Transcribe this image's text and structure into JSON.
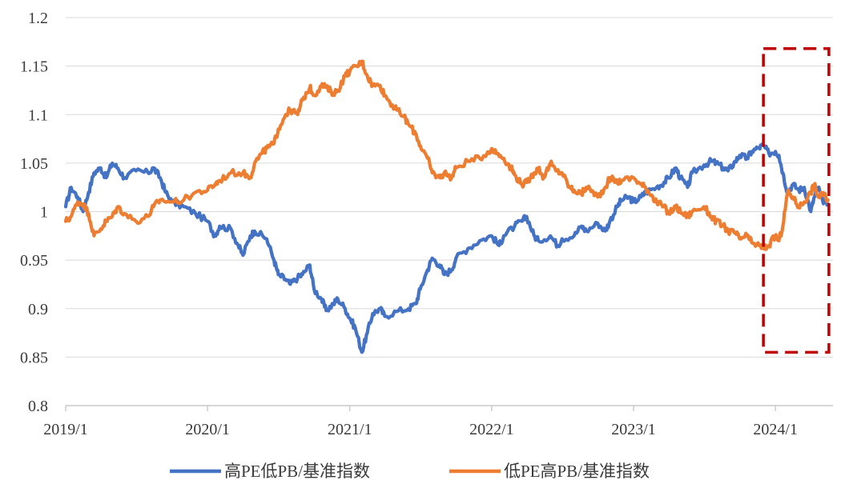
{
  "chart_data": {
    "type": "line",
    "title": "",
    "xlabel": "",
    "ylabel": "",
    "ylim": [
      0.8,
      1.2
    ],
    "yticks": [
      "0.8",
      "0.85",
      "0.9",
      "0.95",
      "1",
      "1.05",
      "1.1",
      "1.15",
      "1.2"
    ],
    "xtick_labels": [
      "2019/1",
      "2020/1",
      "2021/1",
      "2022/1",
      "2023/1",
      "2024/1"
    ],
    "grid": "horizontal",
    "legend_position": "bottom",
    "highlight_box": {
      "style": "dashed",
      "color": "#c00000",
      "x_range": [
        "2023/12",
        "2024/5"
      ],
      "y_range": [
        0.855,
        1.168
      ]
    },
    "series": [
      {
        "name": "高PE低PB/基准指数",
        "color": "#4472c4",
        "points": [
          [
            "2019-01",
            1.005
          ],
          [
            "2019-01-15",
            1.025
          ],
          [
            "2019-02",
            1.015
          ],
          [
            "2019-02-15",
            1.0
          ],
          [
            "2019-03",
            1.02
          ],
          [
            "2019-03-15",
            1.04
          ],
          [
            "2019-04",
            1.045
          ],
          [
            "2019-04-15",
            1.035
          ],
          [
            "2019-05",
            1.05
          ],
          [
            "2019-05-15",
            1.045
          ],
          [
            "2019-06",
            1.035
          ],
          [
            "2019-07",
            1.042
          ],
          [
            "2019-08",
            1.04
          ],
          [
            "2019-08-15",
            1.045
          ],
          [
            "2019-09",
            1.035
          ],
          [
            "2019-09-15",
            1.02
          ],
          [
            "2019-10",
            1.01
          ],
          [
            "2019-11",
            1.005
          ],
          [
            "2019-12",
            0.998
          ],
          [
            "2020-01",
            0.99
          ],
          [
            "2020-01-20",
            0.975
          ],
          [
            "2020-02",
            0.985
          ],
          [
            "2020-03",
            0.982
          ],
          [
            "2020-03-20",
            0.965
          ],
          [
            "2020-04",
            0.955
          ],
          [
            "2020-04-20",
            0.975
          ],
          [
            "2020-05",
            0.98
          ],
          [
            "2020-06",
            0.972
          ],
          [
            "2020-06-20",
            0.95
          ],
          [
            "2020-07",
            0.935
          ],
          [
            "2020-07-20",
            0.93
          ],
          [
            "2020-08",
            0.925
          ],
          [
            "2020-08-20",
            0.932
          ],
          [
            "2020-09",
            0.935
          ],
          [
            "2020-09-20",
            0.945
          ],
          [
            "2020-10",
            0.92
          ],
          [
            "2020-10-20",
            0.91
          ],
          [
            "2020-11",
            0.898
          ],
          [
            "2020-11-20",
            0.905
          ],
          [
            "2020-12",
            0.91
          ],
          [
            "2020-12-20",
            0.9
          ],
          [
            "2021-01",
            0.89
          ],
          [
            "2021-01-15",
            0.88
          ],
          [
            "2021-02",
            0.855
          ],
          [
            "2021-02-15",
            0.875
          ],
          [
            "2021-03",
            0.895
          ],
          [
            "2021-03-20",
            0.9
          ],
          [
            "2021-04",
            0.892
          ],
          [
            "2021-05",
            0.897
          ],
          [
            "2021-06",
            0.9
          ],
          [
            "2021-06-20",
            0.905
          ],
          [
            "2021-07",
            0.92
          ],
          [
            "2021-07-20",
            0.94
          ],
          [
            "2021-08",
            0.952
          ],
          [
            "2021-08-20",
            0.945
          ],
          [
            "2021-09",
            0.935
          ],
          [
            "2021-09-20",
            0.94
          ],
          [
            "2021-10",
            0.952
          ],
          [
            "2021-11",
            0.962
          ],
          [
            "2021-12",
            0.97
          ],
          [
            "2022-01",
            0.975
          ],
          [
            "2022-01-20",
            0.965
          ],
          [
            "2022-02",
            0.975
          ],
          [
            "2022-03",
            0.985
          ],
          [
            "2022-03-20",
            0.99
          ],
          [
            "2022-04",
            0.995
          ],
          [
            "2022-04-20",
            0.975
          ],
          [
            "2022-05",
            0.97
          ],
          [
            "2022-06",
            0.975
          ],
          [
            "2022-06-20",
            0.965
          ],
          [
            "2022-07",
            0.972
          ],
          [
            "2022-08",
            0.975
          ],
          [
            "2022-08-20",
            0.985
          ],
          [
            "2022-09",
            0.98
          ],
          [
            "2022-10",
            0.988
          ],
          [
            "2022-10-20",
            0.98
          ],
          [
            "2022-11",
            0.99
          ],
          [
            "2022-11-20",
            1.005
          ],
          [
            "2022-12",
            1.012
          ],
          [
            "2022-12-20",
            1.015
          ],
          [
            "2023-01",
            1.01
          ],
          [
            "2023-01-20",
            1.015
          ],
          [
            "2023-02",
            1.02
          ],
          [
            "2023-03",
            1.025
          ],
          [
            "2023-03-20",
            1.03
          ],
          [
            "2023-04",
            1.035
          ],
          [
            "2023-04-20",
            1.045
          ],
          [
            "2023-05",
            1.035
          ],
          [
            "2023-05-20",
            1.025
          ],
          [
            "2023-06",
            1.04
          ],
          [
            "2023-07",
            1.048
          ],
          [
            "2023-07-20",
            1.052
          ],
          [
            "2023-08",
            1.05
          ],
          [
            "2023-08-20",
            1.045
          ],
          [
            "2023-09",
            1.042
          ],
          [
            "2023-09-20",
            1.052
          ],
          [
            "2023-10",
            1.058
          ],
          [
            "2023-10-20",
            1.055
          ],
          [
            "2023-11",
            1.062
          ],
          [
            "2023-11-20",
            1.066
          ],
          [
            "2023-12",
            1.068
          ],
          [
            "2023-12-15",
            1.06
          ],
          [
            "2024-01",
            1.062
          ],
          [
            "2024-01-10",
            1.058
          ],
          [
            "2024-01-20",
            1.04
          ],
          [
            "2024-02",
            1.02
          ],
          [
            "2024-02-15",
            1.028
          ],
          [
            "2024-03",
            1.022
          ],
          [
            "2024-03-15",
            1.025
          ],
          [
            "2024-04",
            1.0
          ],
          [
            "2024-04-10",
            1.015
          ],
          [
            "2024-04-20",
            1.025
          ],
          [
            "2024-05",
            1.012
          ],
          [
            "2024-05-15",
            1.008
          ]
        ]
      },
      {
        "name": "低PE高PB/基准指数",
        "color": "#ed7d31",
        "points": [
          [
            "2019-01",
            0.99
          ],
          [
            "2019-01-15",
            0.995
          ],
          [
            "2019-02",
            1.01
          ],
          [
            "2019-02-15",
            1.008
          ],
          [
            "2019-03",
            0.998
          ],
          [
            "2019-03-15",
            0.975
          ],
          [
            "2019-04",
            0.982
          ],
          [
            "2019-04-15",
            0.99
          ],
          [
            "2019-05",
            0.995
          ],
          [
            "2019-05-15",
            1.005
          ],
          [
            "2019-06",
            0.998
          ],
          [
            "2019-07",
            0.99
          ],
          [
            "2019-08",
            0.995
          ],
          [
            "2019-08-15",
            1.005
          ],
          [
            "2019-09",
            1.012
          ],
          [
            "2019-10",
            1.01
          ],
          [
            "2019-11",
            1.012
          ],
          [
            "2019-12",
            1.02
          ],
          [
            "2020-01",
            1.022
          ],
          [
            "2020-01-20",
            1.028
          ],
          [
            "2020-02",
            1.032
          ],
          [
            "2020-03",
            1.04
          ],
          [
            "2020-04",
            1.04
          ],
          [
            "2020-04-20",
            1.035
          ],
          [
            "2020-05",
            1.05
          ],
          [
            "2020-05-20",
            1.06
          ],
          [
            "2020-06",
            1.065
          ],
          [
            "2020-06-20",
            1.07
          ],
          [
            "2020-07",
            1.085
          ],
          [
            "2020-07-20",
            1.1
          ],
          [
            "2020-08",
            1.105
          ],
          [
            "2020-08-20",
            1.1
          ],
          [
            "2020-09",
            1.115
          ],
          [
            "2020-09-20",
            1.128
          ],
          [
            "2020-10",
            1.12
          ],
          [
            "2020-10-20",
            1.13
          ],
          [
            "2020-11",
            1.128
          ],
          [
            "2020-11-20",
            1.122
          ],
          [
            "2020-12",
            1.125
          ],
          [
            "2020-12-20",
            1.14
          ],
          [
            "2021-01",
            1.145
          ],
          [
            "2021-01-20",
            1.15
          ],
          [
            "2021-02",
            1.155
          ],
          [
            "2021-02-15",
            1.14
          ],
          [
            "2021-03",
            1.13
          ],
          [
            "2021-03-20",
            1.13
          ],
          [
            "2021-04",
            1.12
          ],
          [
            "2021-04-20",
            1.11
          ],
          [
            "2021-05",
            1.105
          ],
          [
            "2021-05-20",
            1.098
          ],
          [
            "2021-06",
            1.09
          ],
          [
            "2021-06-20",
            1.08
          ],
          [
            "2021-07",
            1.068
          ],
          [
            "2021-07-20",
            1.055
          ],
          [
            "2021-08",
            1.04
          ],
          [
            "2021-08-20",
            1.035
          ],
          [
            "2021-09",
            1.04
          ],
          [
            "2021-09-20",
            1.035
          ],
          [
            "2021-10",
            1.045
          ],
          [
            "2021-11",
            1.052
          ],
          [
            "2021-12",
            1.055
          ],
          [
            "2022-01",
            1.065
          ],
          [
            "2022-01-15",
            1.06
          ],
          [
            "2022-02",
            1.055
          ],
          [
            "2022-02-20",
            1.045
          ],
          [
            "2022-03",
            1.038
          ],
          [
            "2022-03-20",
            1.028
          ],
          [
            "2022-04",
            1.03
          ],
          [
            "2022-04-20",
            1.04
          ],
          [
            "2022-05",
            1.045
          ],
          [
            "2022-05-15",
            1.035
          ],
          [
            "2022-06",
            1.05
          ],
          [
            "2022-06-15",
            1.042
          ],
          [
            "2022-07",
            1.04
          ],
          [
            "2022-07-20",
            1.025
          ],
          [
            "2022-08",
            1.022
          ],
          [
            "2022-08-20",
            1.018
          ],
          [
            "2022-09",
            1.025
          ],
          [
            "2022-09-20",
            1.02
          ],
          [
            "2022-10",
            1.015
          ],
          [
            "2022-10-20",
            1.025
          ],
          [
            "2022-11",
            1.035
          ],
          [
            "2022-11-20",
            1.03
          ],
          [
            "2022-12",
            1.032
          ],
          [
            "2023-01",
            1.035
          ],
          [
            "2023-01-20",
            1.028
          ],
          [
            "2023-02",
            1.025
          ],
          [
            "2023-02-20",
            1.015
          ],
          [
            "2023-03",
            1.01
          ],
          [
            "2023-03-20",
            1.005
          ],
          [
            "2023-04",
            0.998
          ],
          [
            "2023-04-20",
            1.005
          ],
          [
            "2023-05",
            1.0
          ],
          [
            "2023-05-20",
            0.995
          ],
          [
            "2023-06",
            1.0
          ],
          [
            "2023-07",
            1.005
          ],
          [
            "2023-07-20",
            0.995
          ],
          [
            "2023-08",
            0.99
          ],
          [
            "2023-08-20",
            0.985
          ],
          [
            "2023-09",
            0.98
          ],
          [
            "2023-09-20",
            0.978
          ],
          [
            "2023-10",
            0.972
          ],
          [
            "2023-10-20",
            0.975
          ],
          [
            "2023-11",
            0.968
          ],
          [
            "2023-11-20",
            0.965
          ],
          [
            "2023-12",
            0.962
          ],
          [
            "2023-12-15",
            0.965
          ],
          [
            "2024-01",
            0.975
          ],
          [
            "2024-01-10",
            0.97
          ],
          [
            "2024-01-20",
            0.985
          ],
          [
            "2024-02",
            1.02
          ],
          [
            "2024-02-15",
            1.015
          ],
          [
            "2024-03",
            1.005
          ],
          [
            "2024-03-15",
            1.01
          ],
          [
            "2024-04",
            1.02
          ],
          [
            "2024-04-10",
            1.028
          ],
          [
            "2024-04-20",
            1.015
          ],
          [
            "2024-05",
            1.018
          ],
          [
            "2024-05-15",
            1.012
          ]
        ]
      }
    ]
  }
}
